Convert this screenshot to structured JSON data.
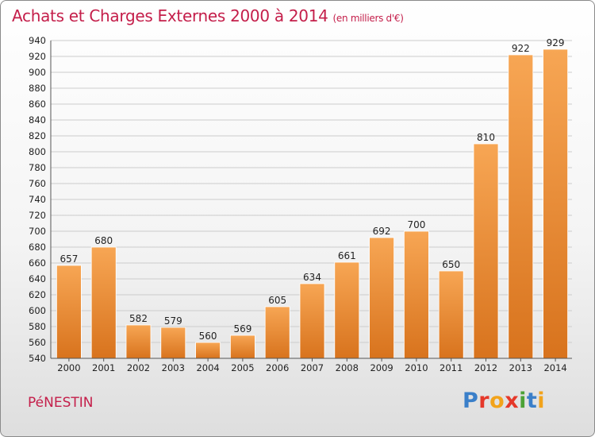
{
  "header": {
    "title": "Achats et Charges Externes 2000 à 2014",
    "subtitle": "(en milliers d'€)"
  },
  "footer": {
    "commune": "PéNESTIN",
    "logo_text": "Proxiti",
    "logo_colors": [
      "#3a7fc9",
      "#e5382a",
      "#f2a31b",
      "#e5382a",
      "#4ca236",
      "#3a7fc9",
      "#f2a31b"
    ]
  },
  "colors": {
    "bar_light": "#f7a654",
    "bar_dark": "#d8731d",
    "grid": "#cccccc",
    "text": "#222222",
    "accent": "#c41e4a"
  },
  "chart_data": {
    "type": "bar",
    "categories": [
      "2000",
      "2001",
      "2002",
      "2003",
      "2004",
      "2005",
      "2006",
      "2007",
      "2008",
      "2009",
      "2010",
      "2011",
      "2012",
      "2013",
      "2014"
    ],
    "values": [
      657,
      680,
      582,
      579,
      560,
      569,
      605,
      634,
      661,
      692,
      700,
      650,
      810,
      922,
      929
    ],
    "title": "Achats et Charges Externes 2000 à 2014",
    "subtitle": "(en milliers d'€)",
    "xlabel": "",
    "ylabel": "",
    "ylim": [
      540,
      940
    ],
    "ytick_step": 20,
    "grid": true,
    "data_labels": true
  }
}
